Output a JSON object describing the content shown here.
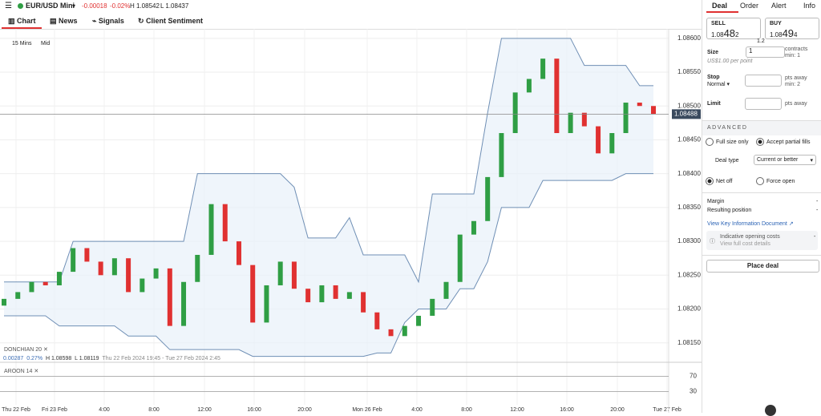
{
  "header": {
    "instrument": "EUR/USD Mini",
    "change": "-0.00018",
    "change_pct": "-0.02%",
    "high": "H 1.08542",
    "low": "L 1.08437"
  },
  "tabs": [
    "Chart",
    "News",
    "Signals",
    "Client Sentiment"
  ],
  "chart_controls": [
    "15 Mins",
    "Mid"
  ],
  "chart_data": {
    "type": "candlestick",
    "open": [
      1.08205,
      1.08215,
      1.08225,
      1.0824,
      1.08235,
      1.08255,
      1.0829,
      1.0827,
      1.0825,
      1.08275,
      1.08225,
      1.08245,
      1.0826,
      1.08175,
      1.0824,
      1.0828,
      1.08355,
      1.083,
      1.08265,
      1.0818,
      1.08235,
      1.0827,
      1.0823,
      1.0821,
      1.08235,
      1.08215,
      1.08225,
      1.08195,
      1.0817,
      1.0816,
      1.08175,
      1.0819,
      1.08215,
      1.0824,
      1.0831,
      1.0833,
      1.08395,
      1.0846,
      1.0852,
      1.0854,
      1.0857,
      1.0846,
      1.0849,
      1.0847,
      1.0843,
      1.0846,
      1.08505,
      1.085
    ],
    "close": [
      1.08215,
      1.08225,
      1.0824,
      1.08235,
      1.08255,
      1.0829,
      1.0827,
      1.0825,
      1.08275,
      1.08225,
      1.08245,
      1.0826,
      1.08175,
      1.0824,
      1.0828,
      1.08355,
      1.083,
      1.08265,
      1.0818,
      1.08235,
      1.0827,
      1.0823,
      1.0821,
      1.08235,
      1.08215,
      1.08225,
      1.08195,
      1.0817,
      1.0816,
      1.08175,
      1.0819,
      1.08215,
      1.0824,
      1.0831,
      1.0833,
      1.08395,
      1.0846,
      1.0852,
      1.0854,
      1.0857,
      1.0846,
      1.0849,
      1.0847,
      1.0843,
      1.0846,
      1.08505,
      1.085,
      1.08488
    ],
    "channel_upper": [
      1.0824,
      1.0824,
      1.0824,
      1.0824,
      1.0824,
      1.083,
      1.083,
      1.083,
      1.083,
      1.083,
      1.083,
      1.083,
      1.083,
      1.083,
      1.084,
      1.084,
      1.084,
      1.084,
      1.084,
      1.084,
      1.084,
      1.0838,
      1.08305,
      1.08305,
      1.08305,
      1.08335,
      1.0828,
      1.0828,
      1.0828,
      1.0828,
      1.0824,
      1.0837,
      1.0837,
      1.0837,
      1.0837,
      1.0849,
      1.086,
      1.086,
      1.086,
      1.086,
      1.086,
      1.086,
      1.0856,
      1.0856,
      1.0856,
      1.0856,
      1.0853,
      1.0853
    ],
    "channel_lower": [
      1.0819,
      1.0819,
      1.0819,
      1.0819,
      1.08175,
      1.08175,
      1.08175,
      1.08175,
      1.08175,
      1.0816,
      1.0816,
      1.0816,
      1.0814,
      1.0814,
      1.0814,
      1.0814,
      1.0814,
      1.0814,
      1.0813,
      1.0813,
      1.0813,
      1.0813,
      1.0813,
      1.0813,
      1.0813,
      1.0813,
      1.0813,
      1.08135,
      1.08135,
      1.0818,
      1.082,
      1.082,
      1.082,
      1.0823,
      1.0823,
      1.0827,
      1.0835,
      1.0835,
      1.0835,
      1.0839,
      1.0839,
      1.0839,
      1.0839,
      1.0839,
      1.0839,
      1.084,
      1.084,
      1.084
    ],
    "up_color": "#2f9e44",
    "down_color": "#e03131",
    "ylim": [
      1.08126,
      1.08614
    ],
    "yticks": [
      {
        "value": 1.086,
        "label": "1.08600"
      },
      {
        "value": 1.0855,
        "label": "1.08550"
      },
      {
        "value": 1.085,
        "label": "1.08500"
      },
      {
        "value": 1.0845,
        "label": "1.08450"
      },
      {
        "value": 1.084,
        "label": "1.08400"
      },
      {
        "value": 1.0835,
        "label": "1.08350"
      },
      {
        "value": 1.083,
        "label": "1.08300"
      },
      {
        "value": 1.0825,
        "label": "1.08250"
      },
      {
        "value": 1.082,
        "label": "1.08200"
      },
      {
        "value": 1.0815,
        "label": "1.08150"
      }
    ],
    "current": {
      "value": 1.08488,
      "label": "1.08488"
    },
    "categories": [
      "Thu 22 Feb",
      "Fri 23 Feb",
      "4:00",
      "8:00",
      "12:00",
      "16:00",
      "20:00",
      "Mon 26 Feb",
      "4:00",
      "8:00",
      "12:00",
      "16:00",
      "20:00",
      "Tue 27 Feb"
    ],
    "grid": true
  },
  "indicator": {
    "name": "DONCHIAN 20",
    "change": "0.00287",
    "pct": "0.27%",
    "high": "H 1.08598",
    "low": "L 1.08119",
    "range": "Thu 22 Feb 2024 19:45 - Tue 27 Feb 2024 2:45"
  },
  "aroon": {
    "name": "AROON 14",
    "ylim": [
      0,
      100
    ],
    "yticks": [
      70,
      30
    ]
  },
  "panel": {
    "tabs": [
      "Deal",
      "Order",
      "Alert",
      "Info"
    ],
    "sell_label": "SELL",
    "sell_price": [
      "1.08",
      "48",
      "2"
    ],
    "buy_label": "BUY",
    "buy_price": [
      "1.08",
      "49",
      "4"
    ],
    "spread": "1.2",
    "size_label": "Size",
    "size_value": "1",
    "size_unit": "contracts",
    "size_min": "min: 1",
    "per_point": "US$1.00 per point",
    "stop_label": "Stop",
    "stop_type": "Normal",
    "stop_unit": "pts away",
    "stop_min": "min: 2",
    "limit_label": "Limit",
    "limit_unit": "pts away",
    "advanced": "ADVANCED",
    "fill_options": [
      "Full size only",
      "Accept partial fills"
    ],
    "deal_type_label": "Deal type",
    "deal_type": "Current or better",
    "position_options": [
      "Net off",
      "Force open"
    ],
    "margin_label": "Margin",
    "margin_value": "-",
    "resulting_label": "Resulting position",
    "resulting_value": "-",
    "kid_link": "View Key Information Document",
    "costs_label": "Indicative opening costs",
    "costs_value": "-",
    "costs_link": "View full cost details",
    "place_deal": "Place deal"
  }
}
